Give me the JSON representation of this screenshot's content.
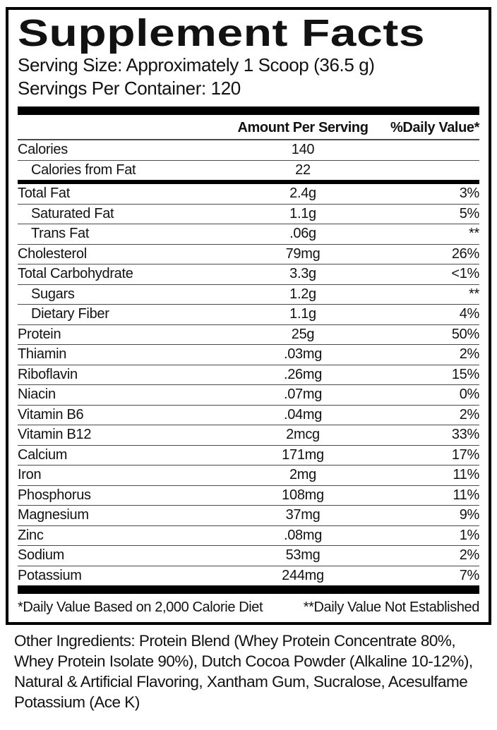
{
  "panel": {
    "title": "Supplement Facts",
    "serving_size": "Serving Size: Approximately 1 Scoop (36.5 g)",
    "servings_per_container": "Servings Per Container: 120",
    "columns": {
      "amount": "Amount Per Serving",
      "daily_value": "%Daily Value*"
    },
    "footnotes": {
      "left": "*Daily Value Based on 2,000 Calorie Diet",
      "right": "**Daily Value Not Established"
    },
    "colors": {
      "background": "#ffffff",
      "text": "#121212",
      "border": "#000000",
      "thin_rule": "#4a4a4a"
    }
  },
  "table": {
    "rows": [
      {
        "name": "Calories",
        "amount": "140",
        "dv": "",
        "indent": false,
        "divider_after": "thin"
      },
      {
        "name": "Calories from Fat",
        "amount": "22",
        "dv": "",
        "indent": true,
        "divider_after": "thick"
      },
      {
        "name": "Total Fat",
        "amount": "2.4g",
        "dv": "3%",
        "indent": false,
        "divider_after": "thin"
      },
      {
        "name": "Saturated Fat",
        "amount": "1.1g",
        "dv": "5%",
        "indent": true,
        "divider_after": "thin"
      },
      {
        "name": "Trans Fat",
        "amount": ".06g",
        "dv": "**",
        "indent": true,
        "divider_after": "thin"
      },
      {
        "name": "Cholesterol",
        "amount": "79mg",
        "dv": "26%",
        "indent": false,
        "divider_after": "thin"
      },
      {
        "name": "Total Carbohydrate",
        "amount": "3.3g",
        "dv": "<1%",
        "indent": false,
        "divider_after": "thin"
      },
      {
        "name": "Sugars",
        "amount": "1.2g",
        "dv": "**",
        "indent": true,
        "divider_after": "thin"
      },
      {
        "name": "Dietary Fiber",
        "amount": "1.1g",
        "dv": "4%",
        "indent": true,
        "divider_after": "thin"
      },
      {
        "name": "Protein",
        "amount": "25g",
        "dv": "50%",
        "indent": false,
        "divider_after": "thin"
      },
      {
        "name": "Thiamin",
        "amount": ".03mg",
        "dv": "2%",
        "indent": false,
        "divider_after": "thin"
      },
      {
        "name": "Riboflavin",
        "amount": ".26mg",
        "dv": "15%",
        "indent": false,
        "divider_after": "thin"
      },
      {
        "name": "Niacin",
        "amount": ".07mg",
        "dv": "0%",
        "indent": false,
        "divider_after": "thin"
      },
      {
        "name": "Vitamin B6",
        "amount": ".04mg",
        "dv": "2%",
        "indent": false,
        "divider_after": "thin"
      },
      {
        "name": "Vitamin B12",
        "amount": "2mcg",
        "dv": "33%",
        "indent": false,
        "divider_after": "thin"
      },
      {
        "name": "Calcium",
        "amount": "171mg",
        "dv": "17%",
        "indent": false,
        "divider_after": "thin"
      },
      {
        "name": "Iron",
        "amount": "2mg",
        "dv": "11%",
        "indent": false,
        "divider_after": "thin"
      },
      {
        "name": "Phosphorus",
        "amount": "108mg",
        "dv": "11%",
        "indent": false,
        "divider_after": "thin"
      },
      {
        "name": "Magnesium",
        "amount": "37mg",
        "dv": "9%",
        "indent": false,
        "divider_after": "thin"
      },
      {
        "name": "Zinc",
        "amount": ".08mg",
        "dv": "1%",
        "indent": false,
        "divider_after": "thin"
      },
      {
        "name": "Sodium",
        "amount": "53mg",
        "dv": "2%",
        "indent": false,
        "divider_after": "thin"
      },
      {
        "name": "Potassium",
        "amount": "244mg",
        "dv": "7%",
        "indent": false,
        "divider_after": "none"
      }
    ]
  },
  "other_ingredients": "Other Ingredients: Protein Blend (Whey Protein Concentrate 80%, Whey Protein Isolate 90%), Dutch Cocoa Powder (Alkaline 10-12%), Natural & Artificial Flavoring, Xantham Gum, Sucralose, Acesulfame Potassium (Ace K)"
}
